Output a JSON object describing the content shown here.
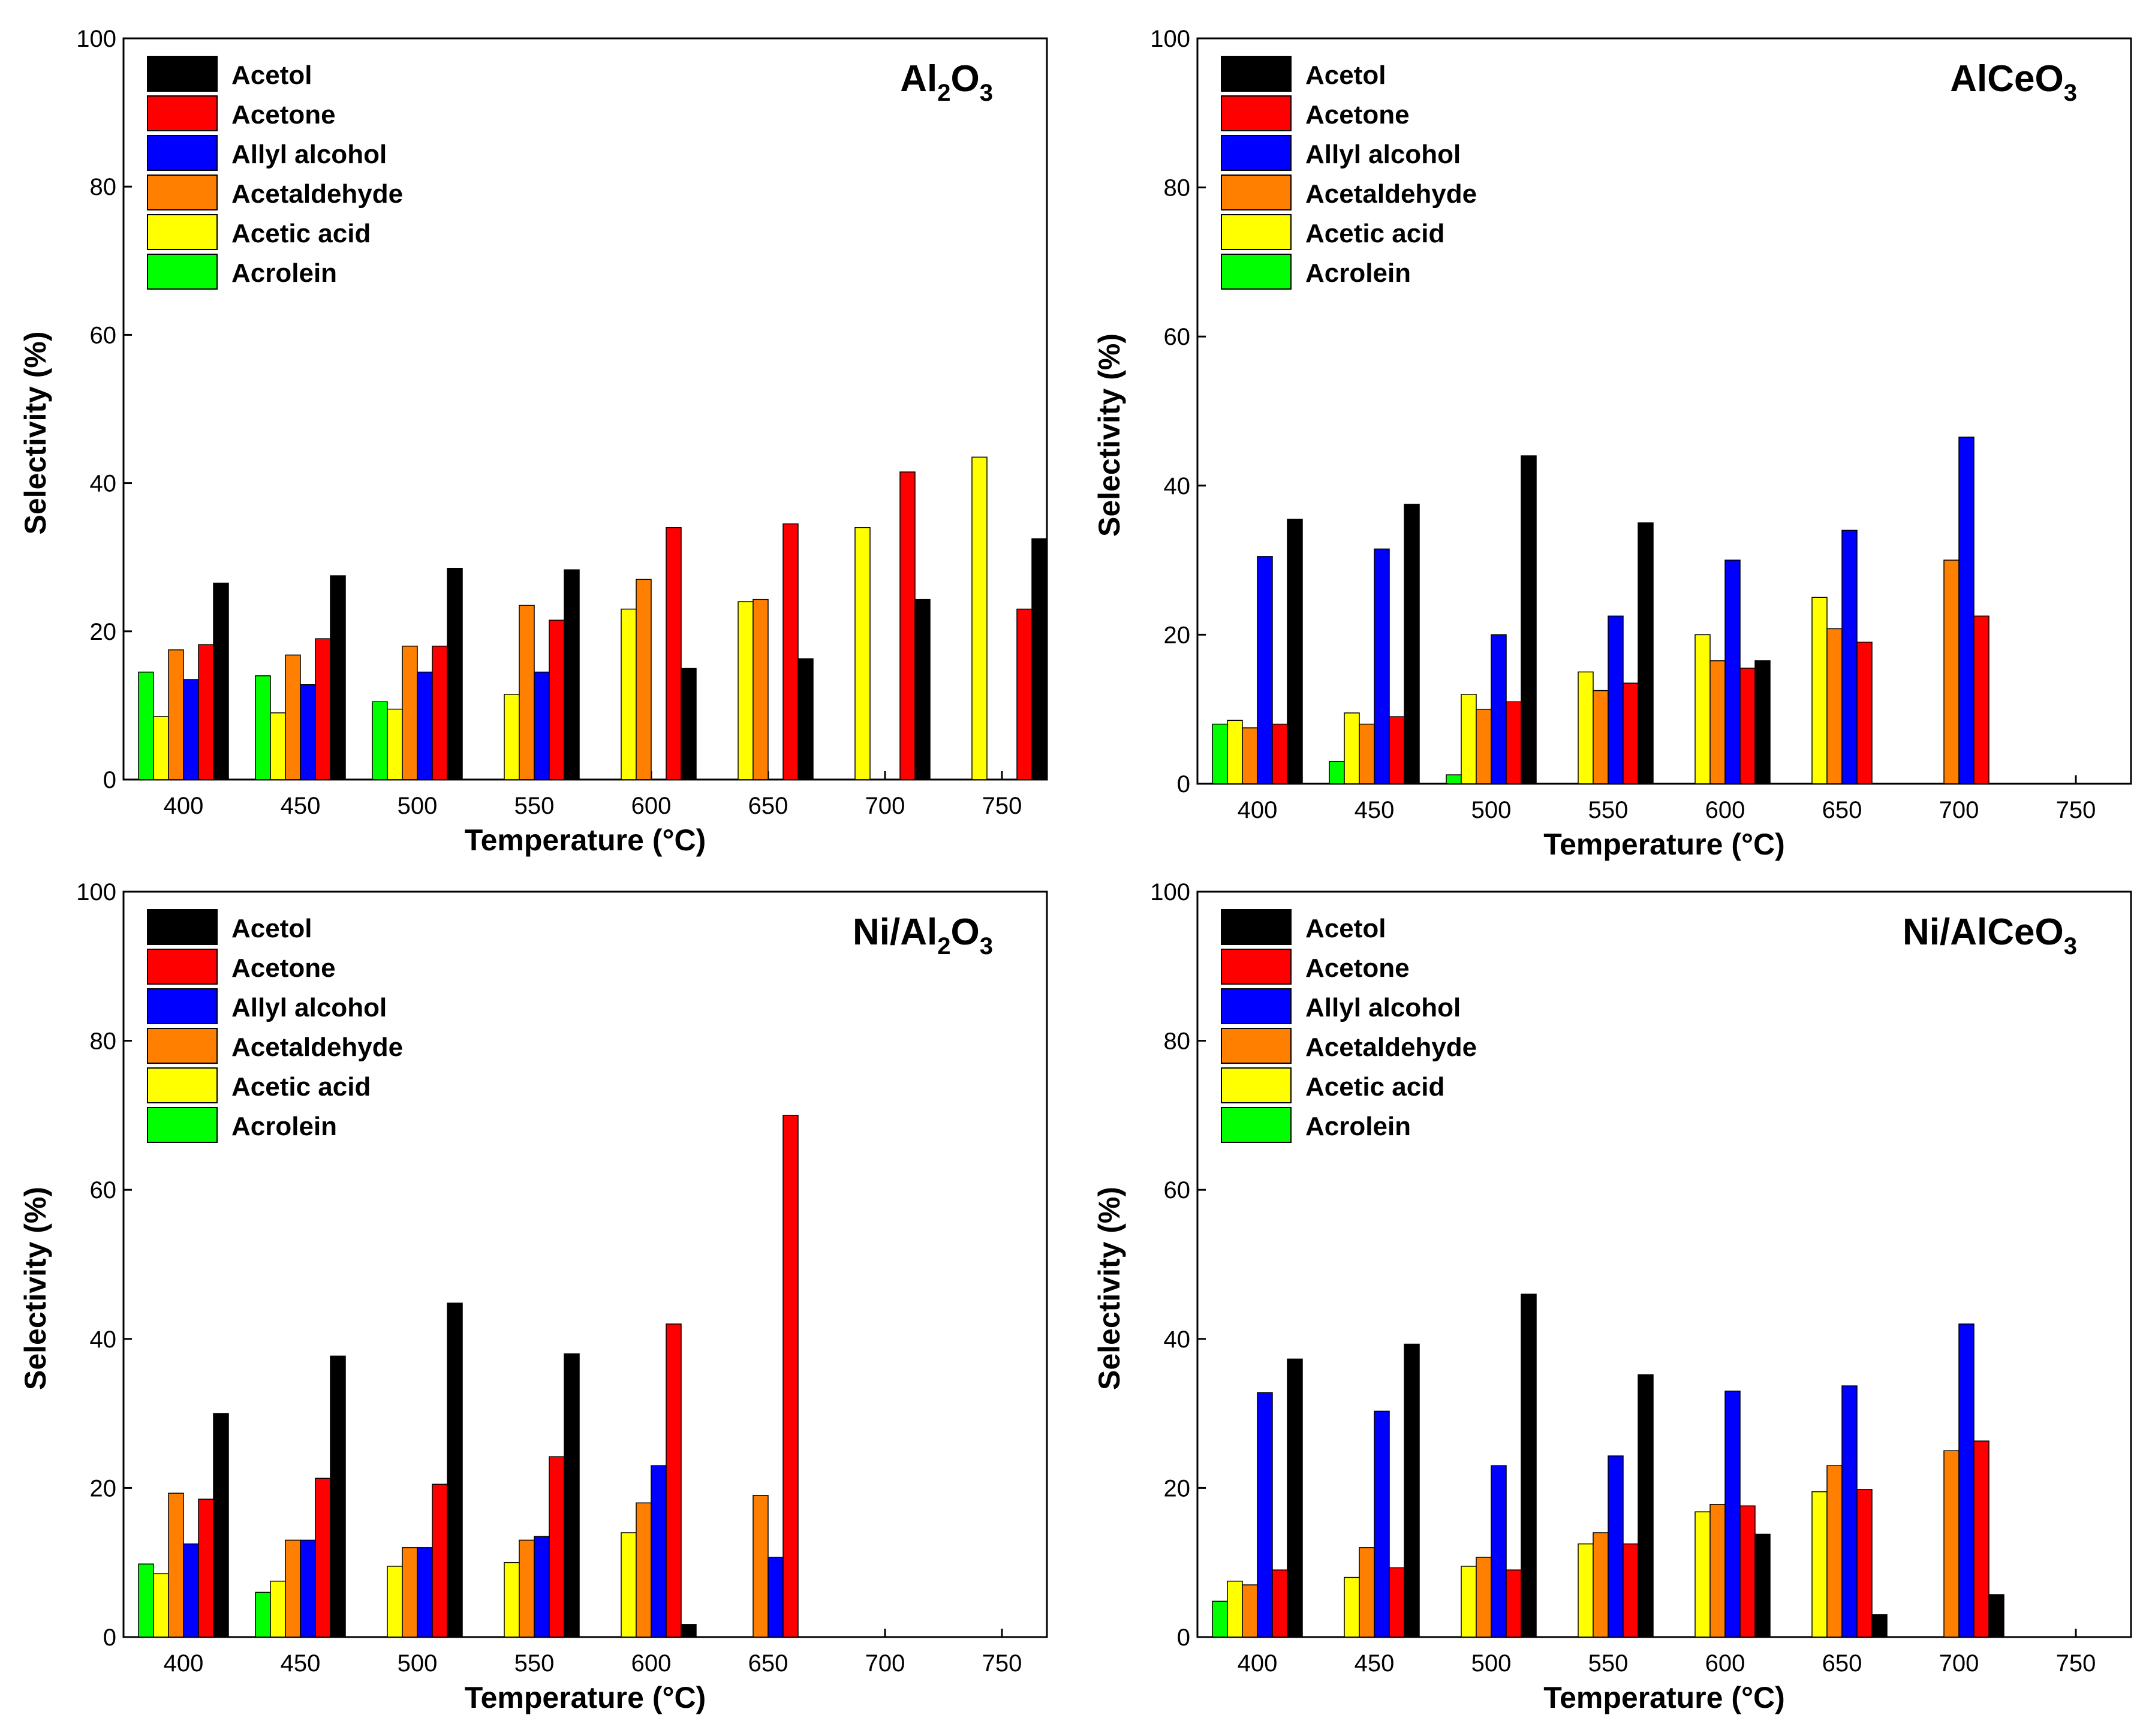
{
  "figure": {
    "legend": [
      {
        "name": "Acetol",
        "color": "#000000"
      },
      {
        "name": "Acetone",
        "color": "#ff0000"
      },
      {
        "name": "Allyl alcohol",
        "color": "#0000ff"
      },
      {
        "name": "Acetaldehyde",
        "color": "#ff8000"
      },
      {
        "name": "Acetic acid",
        "color": "#ffff00"
      },
      {
        "name": "Acrolein",
        "color": "#00ff00"
      }
    ]
  },
  "chart_data": [
    {
      "type": "bar",
      "title": "Al2O3",
      "title_parts": [
        {
          "t": "Al",
          "sub": false
        },
        {
          "t": "2",
          "sub": true
        },
        {
          "t": "O",
          "sub": false
        },
        {
          "t": "3",
          "sub": true
        }
      ],
      "xlabel": "Temperature (°C)",
      "ylabel": "Selectivity (%)",
      "ylim": [
        0,
        100
      ],
      "yticks": [
        0,
        20,
        40,
        60,
        80,
        100
      ],
      "categories": [
        "400",
        "450",
        "500",
        "550",
        "600",
        "650",
        "700",
        "750"
      ],
      "series": [
        {
          "name": "Acrolein",
          "color": "#00ff00",
          "values": [
            14.5,
            14,
            10.5,
            0,
            0,
            0,
            0,
            0
          ]
        },
        {
          "name": "Acetic acid",
          "color": "#ffff00",
          "values": [
            8.5,
            9,
            9.5,
            11.5,
            23,
            24,
            34,
            43.5
          ]
        },
        {
          "name": "Acetaldehyde",
          "color": "#ff8000",
          "values": [
            17.5,
            16.8,
            18,
            23.5,
            27,
            24.3,
            0,
            0
          ]
        },
        {
          "name": "Allyl alcohol",
          "color": "#0000ff",
          "values": [
            13.5,
            12.8,
            14.5,
            14.5,
            0,
            0,
            0,
            0
          ]
        },
        {
          "name": "Acetone",
          "color": "#ff0000",
          "values": [
            18.2,
            19,
            18,
            21.5,
            34,
            34.5,
            41.5,
            23
          ]
        },
        {
          "name": "Acetol",
          "color": "#000000",
          "values": [
            26.5,
            27.5,
            28.5,
            28.3,
            15,
            16.3,
            24.3,
            32.5
          ]
        }
      ]
    },
    {
      "type": "bar",
      "title": "AlCeO3",
      "title_parts": [
        {
          "t": "AlCeO",
          "sub": false
        },
        {
          "t": "3",
          "sub": true
        }
      ],
      "xlabel": "Temperature (°C)",
      "ylabel": "Selectivity (%)",
      "ylim": [
        0,
        100
      ],
      "yticks": [
        0,
        20,
        40,
        60,
        80,
        100
      ],
      "categories": [
        "400",
        "450",
        "500",
        "550",
        "600",
        "650",
        "700",
        "750"
      ],
      "series": [
        {
          "name": "Acrolein",
          "color": "#00ff00",
          "values": [
            8,
            3,
            1.2,
            0,
            0,
            0,
            0,
            0
          ]
        },
        {
          "name": "Acetic acid",
          "color": "#ffff00",
          "values": [
            8.5,
            9.5,
            12,
            15,
            20,
            25,
            0,
            0
          ]
        },
        {
          "name": "Acetaldehyde",
          "color": "#ff8000",
          "values": [
            7.5,
            8,
            10,
            12.5,
            16.5,
            20.8,
            30,
            0
          ]
        },
        {
          "name": "Allyl alcohol",
          "color": "#0000ff",
          "values": [
            30.5,
            31.5,
            20,
            22.5,
            30,
            34,
            46.5,
            0
          ]
        },
        {
          "name": "Acetone",
          "color": "#ff0000",
          "values": [
            8,
            9,
            11,
            13.5,
            15.5,
            19,
            22.5,
            0
          ]
        },
        {
          "name": "Acetol",
          "color": "#000000",
          "values": [
            35.5,
            37.5,
            44,
            35,
            16.5,
            0,
            0,
            0
          ]
        }
      ]
    },
    {
      "type": "bar",
      "title": "Ni/Al2O3",
      "title_parts": [
        {
          "t": "Ni/Al",
          "sub": false
        },
        {
          "t": "2",
          "sub": true
        },
        {
          "t": "O",
          "sub": false
        },
        {
          "t": "3",
          "sub": true
        }
      ],
      "xlabel": "Temperature (°C)",
      "ylabel": "Selectivity (%)",
      "ylim": [
        0,
        100
      ],
      "yticks": [
        0,
        20,
        40,
        60,
        80,
        100
      ],
      "categories": [
        "400",
        "450",
        "500",
        "550",
        "600",
        "650",
        "700",
        "750"
      ],
      "series": [
        {
          "name": "Acrolein",
          "color": "#00ff00",
          "values": [
            9.8,
            6,
            0,
            0,
            0,
            0,
            0,
            0
          ]
        },
        {
          "name": "Acetic acid",
          "color": "#ffff00",
          "values": [
            8.5,
            7.5,
            9.5,
            10,
            14,
            0,
            0,
            0
          ]
        },
        {
          "name": "Acetaldehyde",
          "color": "#ff8000",
          "values": [
            19.3,
            13,
            12,
            13,
            18,
            19,
            0,
            0
          ]
        },
        {
          "name": "Allyl alcohol",
          "color": "#0000ff",
          "values": [
            12.5,
            13,
            12,
            13.5,
            23,
            10.7,
            0,
            0
          ]
        },
        {
          "name": "Acetone",
          "color": "#ff0000",
          "values": [
            18.5,
            21.3,
            20.5,
            24.2,
            42,
            70,
            0,
            0
          ]
        },
        {
          "name": "Acetol",
          "color": "#000000",
          "values": [
            30,
            37.7,
            44.8,
            38,
            1.7,
            0,
            0,
            0
          ]
        }
      ]
    },
    {
      "type": "bar",
      "title": "Ni/AlCeO3",
      "title_parts": [
        {
          "t": "Ni/AlCeO",
          "sub": false
        },
        {
          "t": "3",
          "sub": true
        }
      ],
      "xlabel": "Temperature (°C)",
      "ylabel": "Selectivity (%)",
      "ylim": [
        0,
        100
      ],
      "yticks": [
        0,
        20,
        40,
        60,
        80,
        100
      ],
      "categories": [
        "400",
        "450",
        "500",
        "550",
        "600",
        "650",
        "700",
        "750"
      ],
      "series": [
        {
          "name": "Acrolein",
          "color": "#00ff00",
          "values": [
            4.8,
            0,
            0,
            0,
            0,
            0,
            0,
            0
          ]
        },
        {
          "name": "Acetic acid",
          "color": "#ffff00",
          "values": [
            7.5,
            8,
            9.5,
            12.5,
            16.8,
            19.5,
            0,
            0
          ]
        },
        {
          "name": "Acetaldehyde",
          "color": "#ff8000",
          "values": [
            7,
            12,
            10.7,
            14,
            17.8,
            23,
            25,
            0
          ]
        },
        {
          "name": "Allyl alcohol",
          "color": "#0000ff",
          "values": [
            32.8,
            30.3,
            23,
            24.3,
            33,
            33.7,
            42,
            0
          ]
        },
        {
          "name": "Acetone",
          "color": "#ff0000",
          "values": [
            9,
            9.3,
            9,
            12.5,
            17.6,
            19.8,
            26.3,
            0
          ]
        },
        {
          "name": "Acetol",
          "color": "#000000",
          "values": [
            37.3,
            39.3,
            46,
            35.2,
            13.8,
            3,
            5.7,
            0
          ]
        }
      ]
    }
  ]
}
